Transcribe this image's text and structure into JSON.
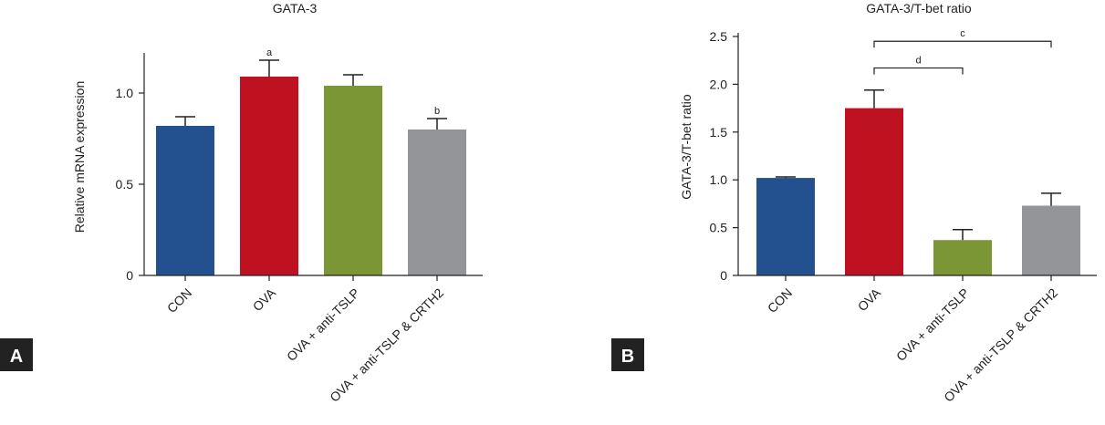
{
  "colors": {
    "CON": "#23508f",
    "OVA": "#bf1220",
    "OVA + anti-TSLP": "#7a9635",
    "OVA + anti-TSLP & CRTH2": "#939598",
    "axis": "#222222",
    "panel_label_bg": "#222222"
  },
  "chart_data": [
    {
      "type": "bar",
      "panel_label": "A",
      "title": "GATA-3",
      "ylabel": "Relative mRNA expression",
      "xlabel": "",
      "ylim": [
        0,
        1.2
      ],
      "yticks": [
        0,
        0.5,
        1.0
      ],
      "ytick_labels": [
        "0",
        "0.5",
        "1.0"
      ],
      "categories": [
        "CON",
        "OVA",
        "OVA + anti-TSLP",
        "OVA + anti-TSLP & CRTH2"
      ],
      "values": [
        0.82,
        1.09,
        1.04,
        0.8
      ],
      "errors": [
        0.05,
        0.09,
        0.06,
        0.06
      ],
      "bar_labels": [
        "",
        "a",
        "",
        "b"
      ],
      "grid": false,
      "brackets": []
    },
    {
      "type": "bar",
      "panel_label": "B",
      "title": "GATA-3/T-bet ratio",
      "ylabel": "GATA-3/T-bet ratio",
      "xlabel": "",
      "ylim": [
        0,
        2.5
      ],
      "yticks": [
        0,
        0.5,
        1.0,
        1.5,
        2.0,
        2.5
      ],
      "ytick_labels": [
        "0",
        "0.5",
        "1.0",
        "1.5",
        "2.0",
        "2.5"
      ],
      "categories": [
        "CON",
        "OVA",
        "OVA + anti-TSLP",
        "OVA + anti-TSLP & CRTH2"
      ],
      "values": [
        1.02,
        1.75,
        0.37,
        0.73
      ],
      "errors": [
        0.01,
        0.19,
        0.11,
        0.13
      ],
      "bar_labels": [
        "",
        "",
        "",
        ""
      ],
      "grid": false,
      "brackets": [
        {
          "from": 1,
          "to": 2,
          "y": 2.17,
          "label": "d"
        },
        {
          "from": 1,
          "to": 3,
          "y": 2.45,
          "label": "c"
        }
      ]
    }
  ]
}
